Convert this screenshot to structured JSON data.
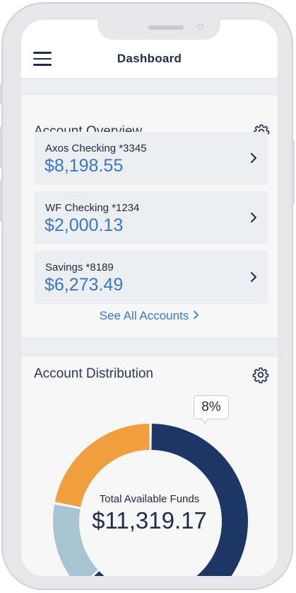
{
  "header": {
    "title": "Dashboard"
  },
  "overview": {
    "title": "Account Overview",
    "accounts": [
      {
        "name": "Axos Checking *3345",
        "balance": "$8,198.55"
      },
      {
        "name": "WF Checking *1234",
        "balance": "$2,000.13"
      },
      {
        "name": "Savings *8189",
        "balance": "$6,273.49"
      }
    ],
    "see_all": "See All Accounts"
  },
  "distribution": {
    "title": "Account Distribution",
    "tooltip": "8%",
    "total_label": "Total Available Funds",
    "total_value": "$11,319.17"
  },
  "chart_data": {
    "type": "pie",
    "categories": [
      "",
      "",
      ""
    ],
    "values": [
      63,
      15,
      22
    ],
    "colors": [
      "#1d3666",
      "#a7c4d3",
      "#ef9f3e"
    ],
    "title": "",
    "center_label": "Total Available Funds",
    "center_value": "$11,319.17"
  },
  "icons": {
    "menu": "menu-icon",
    "settings": "gear-icon",
    "chevron": "chevron-right-icon"
  }
}
